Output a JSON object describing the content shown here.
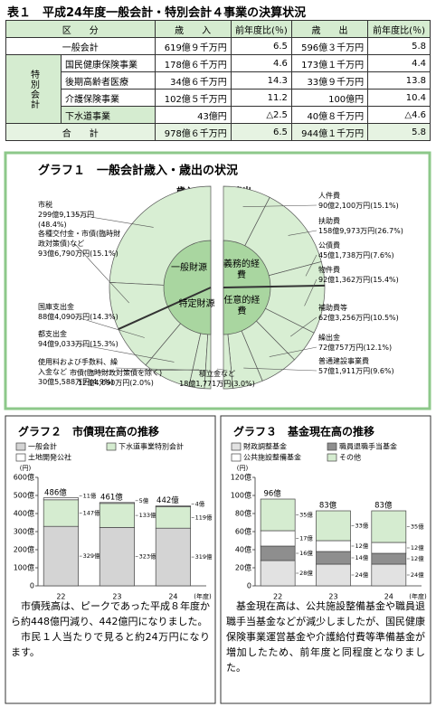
{
  "table": {
    "title": "表１　平成24年度一般会計・特別会計４事業の決算状況",
    "header": [
      "区　　分",
      "歳　　入",
      "前年度比(％)",
      "歳　　出",
      "前年度比(％)"
    ],
    "group_label": "特別会計",
    "rows": [
      [
        "一般会計",
        "619億９千万円",
        "6.5",
        "596億３千万円",
        "5.8"
      ],
      [
        "国民健康保険事業",
        "178億６千万円",
        "4.6",
        "173億１千万円",
        "4.4"
      ],
      [
        "後期高齢者医療",
        "34億６千万円",
        "14.3",
        "33億９千万円",
        "13.8"
      ],
      [
        "介護保険事業",
        "102億５千万円",
        "11.2",
        "100億円",
        "10.4"
      ],
      [
        "下水道事業",
        "43億円",
        "△2.5",
        "40億８千万円",
        "△4.6"
      ],
      [
        "合　　計",
        "978億６千万円",
        "6.5",
        "944億１千万円",
        "5.8"
      ]
    ]
  },
  "graph1": {
    "title": "グラフ１　一般会計歳入・歳出の状況",
    "color": "#d8eed3",
    "inner_color": "#a9d6a0",
    "revenue": {
      "label": "歳入",
      "inner": [
        "一般財源",
        "特定財源"
      ],
      "slices": [
        {
          "name": "市税",
          "amount": "299億9,135万円",
          "value": 48.4,
          "value_label": "(48.4%)"
        },
        {
          "name": "各種交付金・市債(臨時財政対策債)など",
          "amount": "93億6,790万円",
          "value": 15.1,
          "value_label": "(15.1%)"
        },
        {
          "name": "国庫支出金",
          "amount": "88億4,090万円",
          "value": 14.3,
          "value_label": "(14.3%)"
        },
        {
          "name": "都支出金",
          "amount": "94億9,033万円",
          "value": 15.3,
          "value_label": "(15.3%)"
        },
        {
          "name": "使用料および手数料、繰入金など",
          "amount": "30億5,588万円",
          "value": 4.9,
          "value_label": "(4.9%)"
        },
        {
          "name": "市債(臨時財政対策債を除く)",
          "amount": "12億4,090万円",
          "value": 2.0,
          "value_label": "(2.0%)"
        }
      ]
    },
    "expenditure": {
      "label": "歳出",
      "inner": [
        "義務的経費",
        "任意的経費"
      ],
      "slices": [
        {
          "name": "人件費",
          "amount": "90億2,100万円",
          "value": 15.1,
          "value_label": "(15.1%)"
        },
        {
          "name": "扶助費",
          "amount": "158億9,973万円",
          "value": 26.7,
          "value_label": "(26.7%)"
        },
        {
          "name": "公債費",
          "amount": "45億1,738万円",
          "value": 7.6,
          "value_label": "(7.6%)"
        },
        {
          "name": "物件費",
          "amount": "92億1,362万円",
          "value": 15.4,
          "value_label": "(15.4%)"
        },
        {
          "name": "補助費等",
          "amount": "62億3,256万円",
          "value": 10.5,
          "value_label": "(10.5%)"
        },
        {
          "name": "繰出金",
          "amount": "72億757万円",
          "value": 12.1,
          "value_label": "(12.1%)"
        },
        {
          "name": "普通建設事業費",
          "amount": "57億1,911万円",
          "value": 9.6,
          "value_label": "(9.6%)"
        },
        {
          "name": "積立金など",
          "amount": "18億1,771万円",
          "value": 3.0,
          "value_label": "(3.0%)"
        }
      ]
    }
  },
  "graph2": {
    "title": "グラフ２　市債現在高の推移",
    "unit": "(円)",
    "x_unit": "(年度)",
    "categories": [
      "22",
      "23",
      "24"
    ],
    "ylim": [
      0,
      600
    ],
    "yticks": [
      0,
      {
        "value": 100,
        "label": "100億"
      },
      {
        "value": 200,
        "label": "200億"
      },
      {
        "value": 300,
        "label": "300億"
      },
      {
        "value": 400,
        "label": "400億"
      },
      {
        "value": 500,
        "label": "500億"
      },
      {
        "value": 600,
        "label": "600億"
      }
    ],
    "series": [
      {
        "name": "一般会計",
        "color": "#d4d4d4",
        "values": [
          329,
          323,
          319
        ],
        "value_labels": [
          "329億",
          "323億",
          "319億"
        ]
      },
      {
        "name": "下水道事業特別会計",
        "color": "#d5ecd0",
        "values": [
          147,
          133,
          119
        ],
        "value_labels": [
          "147億",
          "133億",
          "119億"
        ]
      },
      {
        "name": "土地開発公社",
        "color": "#ffffff",
        "values": [
          11,
          5,
          4
        ],
        "value_labels": [
          "11億",
          "5億",
          "4億"
        ]
      }
    ],
    "totals": [
      486,
      461,
      442
    ],
    "total_labels": [
      "486億",
      "461億",
      "442億"
    ],
    "text": [
      "市債残高は、ピークであった平成８年度から約448億円減り、442億円になりました。",
      "市民１人当たりで見ると約24万円になります。"
    ]
  },
  "graph3": {
    "title": "グラフ３　基金現在高の推移",
    "unit": "(円)",
    "x_unit": "(年度)",
    "categories": [
      "22",
      "23",
      "24"
    ],
    "ylim": [
      0,
      120
    ],
    "yticks": [
      0,
      {
        "value": 20,
        "label": "20億"
      },
      {
        "value": 40,
        "label": "40億"
      },
      {
        "value": 60,
        "label": "60億"
      },
      {
        "value": 80,
        "label": "80億"
      },
      {
        "value": 100,
        "label": "100億"
      },
      {
        "value": 120,
        "label": "120億"
      }
    ],
    "series": [
      {
        "name": "財政調整基金",
        "color": "#e2e2e2",
        "values": [
          28,
          24,
          24
        ],
        "value_labels": [
          "28億",
          "24億",
          "24億"
        ]
      },
      {
        "name": "職員退職手当基金",
        "color": "#8e8e8e",
        "values": [
          16,
          14,
          12
        ],
        "value_labels": [
          "16億",
          "14億",
          "12億"
        ]
      },
      {
        "name": "公共施設整備基金",
        "color": "#ffffff",
        "values": [
          17,
          12,
          12
        ],
        "value_labels": [
          "17億",
          "12億",
          "12億"
        ]
      },
      {
        "name": "その他",
        "color": "#d5ecd0",
        "values": [
          35,
          33,
          35
        ],
        "value_labels": [
          "35億",
          "33億",
          "35億"
        ]
      }
    ],
    "totals": [
      96,
      83,
      83
    ],
    "total_labels": [
      "96億",
      "83億",
      "83億"
    ],
    "text": [
      "基金現在高は、公共施設整備基金や職員退職手当基金などが減少しましたが、国民健康保険事業運営基金や介護給付費等準備基金が増加したため、前年度と同程度となりました。"
    ]
  }
}
